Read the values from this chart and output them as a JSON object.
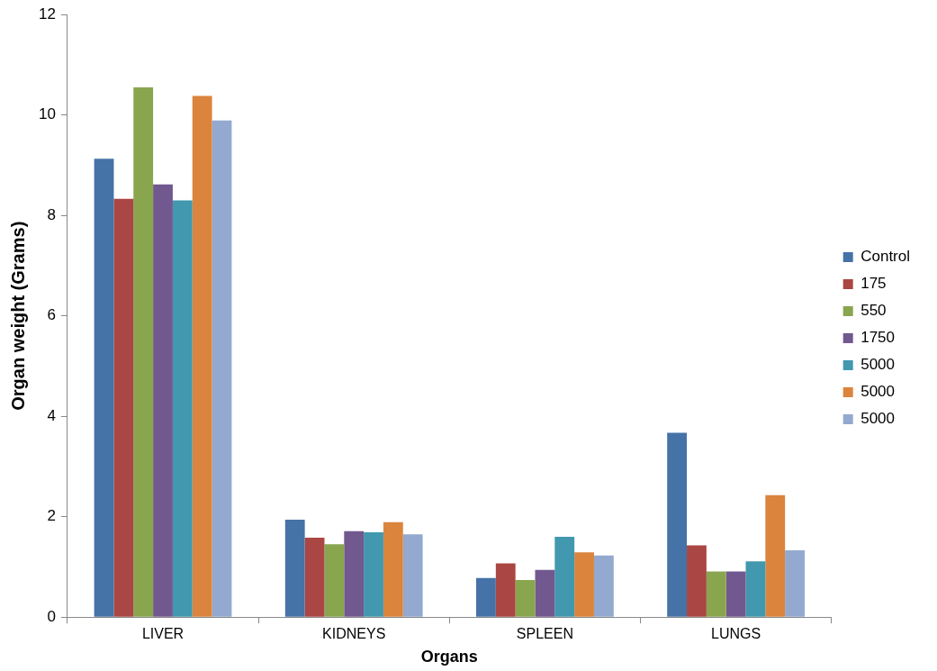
{
  "chart_data": {
    "type": "bar",
    "xlabel": "Organs",
    "ylabel": "Organ weight (Grams)",
    "categories": [
      "LIVER",
      "KIDNEYS",
      "SPLEEN",
      "LUNGS"
    ],
    "series": [
      {
        "name": "Control",
        "color": "#4572a7",
        "values": [
          9.13,
          1.94,
          0.78,
          3.67
        ]
      },
      {
        "name": "175",
        "color": "#aa4643",
        "values": [
          8.33,
          1.58,
          1.07,
          1.43
        ]
      },
      {
        "name": "550",
        "color": "#89a54e",
        "values": [
          10.55,
          1.45,
          0.74,
          0.91
        ]
      },
      {
        "name": "1750",
        "color": "#71588f",
        "values": [
          8.62,
          1.71,
          0.94,
          0.91
        ]
      },
      {
        "name": "5000",
        "color": "#4198af",
        "values": [
          8.3,
          1.69,
          1.6,
          1.11
        ]
      },
      {
        "name": "5000",
        "color": "#db843d",
        "values": [
          10.38,
          1.89,
          1.29,
          2.43
        ]
      },
      {
        "name": "5000",
        "color": "#93a9cf",
        "values": [
          9.89,
          1.65,
          1.23,
          1.33
        ]
      }
    ],
    "ylim": [
      0,
      12
    ],
    "yticks": [
      0,
      2,
      4,
      6,
      8,
      10,
      12
    ],
    "grid": false,
    "legend": "right"
  }
}
